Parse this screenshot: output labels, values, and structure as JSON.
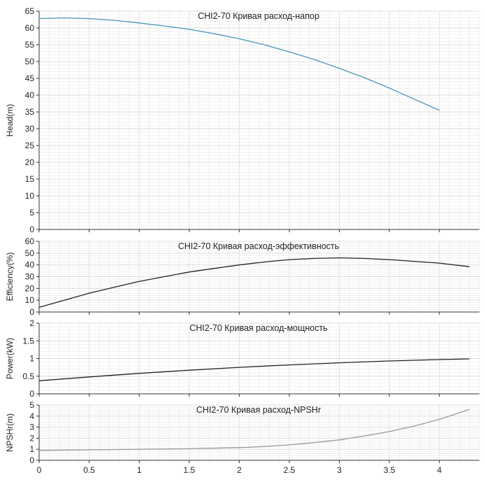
{
  "chart_data": [
    {
      "type": "line",
      "title": "CHI2-70 Кривая расход-напор",
      "ylabel": "Head(m)",
      "xlabel": "",
      "xlim": [
        0,
        4.4
      ],
      "ylim": [
        0,
        65
      ],
      "yticks": [
        0,
        5,
        10,
        15,
        20,
        25,
        30,
        35,
        40,
        45,
        50,
        55,
        60,
        65
      ],
      "grid": true,
      "color": "#4a95b8",
      "series": [
        {
          "x": [
            0,
            0.25,
            0.5,
            0.75,
            1,
            1.25,
            1.5,
            1.75,
            2,
            2.25,
            2.5,
            2.75,
            3,
            3.25,
            3.5,
            3.75,
            4
          ],
          "values": [
            62.8,
            63.0,
            62.8,
            62.3,
            61.5,
            60.6,
            59.6,
            58.3,
            56.8,
            55.0,
            52.9,
            50.6,
            48.0,
            45.2,
            42.1,
            38.8,
            35.5
          ]
        }
      ]
    },
    {
      "type": "line",
      "title": "CHI2-70 Кривая расход-эффективность",
      "ylabel": "Efficiency(%)",
      "xlabel": "",
      "xlim": [
        0,
        4.4
      ],
      "ylim": [
        0,
        60
      ],
      "yticks": [
        0,
        10,
        20,
        30,
        40,
        50,
        60
      ],
      "grid": true,
      "color": "#222222",
      "series": [
        {
          "x": [
            0,
            0.25,
            0.5,
            0.75,
            1,
            1.25,
            1.5,
            1.75,
            2,
            2.25,
            2.5,
            2.75,
            3,
            3.25,
            3.5,
            3.75,
            4,
            4.3
          ],
          "values": [
            4,
            10,
            16,
            21,
            26,
            30,
            34,
            37,
            40,
            42.5,
            44.5,
            45.5,
            46,
            45.5,
            44.5,
            43,
            41.5,
            38.5
          ]
        }
      ]
    },
    {
      "type": "line",
      "title": "CHI2-70 Кривая расход-мощность",
      "ylabel": "Power(kW)",
      "xlabel": "",
      "xlim": [
        0,
        4.4
      ],
      "ylim": [
        0,
        2
      ],
      "yticks": [
        0,
        0.5,
        1,
        1.5,
        2
      ],
      "grid": true,
      "color": "#222222",
      "series": [
        {
          "x": [
            0,
            0.5,
            1,
            1.5,
            2,
            2.5,
            3,
            3.5,
            4,
            4.3
          ],
          "values": [
            0.37,
            0.48,
            0.58,
            0.67,
            0.75,
            0.82,
            0.88,
            0.93,
            0.97,
            0.99
          ]
        }
      ]
    },
    {
      "type": "line",
      "title": "CHI2-70 Кривая расход-NPSHr",
      "ylabel": "NPSHr(m)",
      "xlabel": "",
      "xlim": [
        0,
        4.4
      ],
      "ylim": [
        0,
        5
      ],
      "yticks": [
        0,
        1,
        2,
        3,
        4,
        5
      ],
      "xticks": [
        0,
        0.5,
        1,
        1.5,
        2,
        2.5,
        3,
        3.5,
        4
      ],
      "grid": true,
      "color": "#999999",
      "series": [
        {
          "x": [
            0,
            0.5,
            1,
            1.5,
            2,
            2.25,
            2.5,
            2.75,
            3,
            3.25,
            3.5,
            3.75,
            4,
            4.3
          ],
          "values": [
            0.9,
            0.95,
            1.0,
            1.05,
            1.15,
            1.25,
            1.4,
            1.6,
            1.85,
            2.2,
            2.6,
            3.1,
            3.7,
            4.6
          ]
        }
      ]
    }
  ]
}
